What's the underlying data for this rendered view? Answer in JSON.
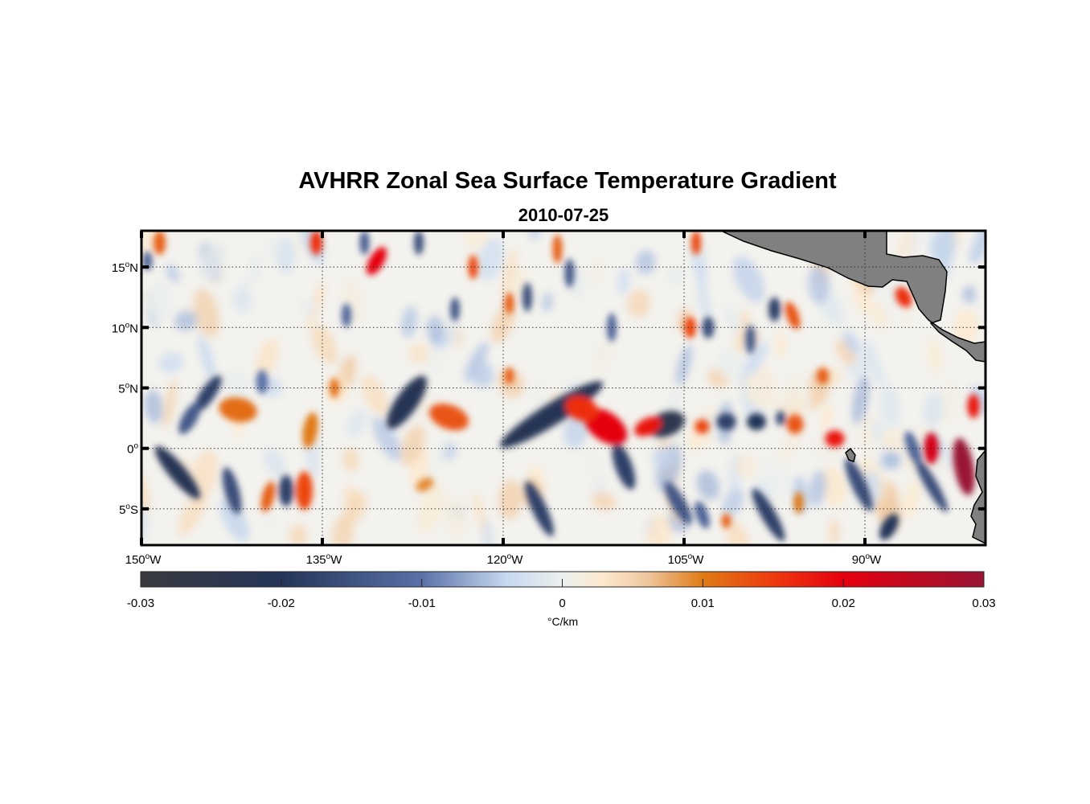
{
  "title": "AVHRR Zonal Sea Surface Temperature Gradient",
  "subtitle": "2010-07-25",
  "map": {
    "lon_range": [
      -150,
      -80
    ],
    "lat_range": [
      -8,
      18
    ],
    "grid": "dotted",
    "land_color": "#808080",
    "lon_ticks": [
      {
        "value": -150,
        "deg": "150",
        "hemi": "W"
      },
      {
        "value": -135,
        "deg": "135",
        "hemi": "W"
      },
      {
        "value": -120,
        "deg": "120",
        "hemi": "W"
      },
      {
        "value": -105,
        "deg": "105",
        "hemi": "W"
      },
      {
        "value": -90,
        "deg": "90",
        "hemi": "W"
      }
    ],
    "lat_ticks": [
      {
        "value": 15,
        "deg": "15",
        "hemi": "N"
      },
      {
        "value": 10,
        "deg": "10",
        "hemi": "N"
      },
      {
        "value": 5,
        "deg": "5",
        "hemi": "N"
      },
      {
        "value": 0,
        "deg": "0",
        "hemi": ""
      },
      {
        "value": -5,
        "deg": "5",
        "hemi": "S"
      }
    ],
    "features": [
      {
        "name": "equatorial-front-west",
        "lon": -116.0,
        "lat": 2.8,
        "value": -0.022,
        "rx": 5.0,
        "ry": 0.9,
        "angle": -32
      },
      {
        "name": "equatorial-warm-lobe-1",
        "lon": -111.5,
        "lat": 1.8,
        "value": 0.02,
        "rx": 2.0,
        "ry": 1.2,
        "angle": 35
      },
      {
        "name": "equatorial-warm-lobe-2",
        "lon": -113.5,
        "lat": 3.3,
        "value": 0.016,
        "rx": 1.4,
        "ry": 1.0,
        "angle": 20
      },
      {
        "name": "equatorial-cold-eddy",
        "lon": -106.5,
        "lat": 2.0,
        "value": -0.024,
        "rx": 1.6,
        "ry": 1.0,
        "angle": -20
      },
      {
        "name": "equatorial-warm-eddy",
        "lon": -108.0,
        "lat": 1.8,
        "value": 0.018,
        "rx": 1.2,
        "ry": 0.7,
        "angle": -25
      },
      {
        "name": "cold-front-129w",
        "lon": -128.0,
        "lat": 3.8,
        "value": -0.022,
        "rx": 0.9,
        "ry": 2.6,
        "angle": 35
      },
      {
        "name": "warm-patch-125w",
        "lon": -124.5,
        "lat": 2.6,
        "value": 0.013,
        "rx": 1.7,
        "ry": 1.0,
        "angle": 20
      },
      {
        "name": "warm-patch-141w",
        "lon": -142.0,
        "lat": 3.2,
        "value": 0.011,
        "rx": 1.6,
        "ry": 1.0,
        "angle": 10
      },
      {
        "name": "cold-streak-144w",
        "lon": -144.5,
        "lat": 4.5,
        "value": -0.018,
        "rx": 0.6,
        "ry": 1.8,
        "angle": 35
      },
      {
        "name": "cold-streak-146w",
        "lon": -146.0,
        "lat": 2.5,
        "value": -0.014,
        "rx": 0.6,
        "ry": 1.5,
        "angle": 30
      },
      {
        "name": "cold-band-148w-south",
        "lon": -147.0,
        "lat": -2.0,
        "value": -0.022,
        "rx": 0.7,
        "ry": 2.8,
        "angle": -40
      },
      {
        "name": "cold-streak-142w-south",
        "lon": -142.5,
        "lat": -3.5,
        "value": -0.016,
        "rx": 0.6,
        "ry": 2.0,
        "angle": -15
      },
      {
        "name": "warm-patch-136w-south",
        "lon": -136.5,
        "lat": -3.5,
        "value": 0.014,
        "rx": 0.7,
        "ry": 1.6,
        "angle": 0
      },
      {
        "name": "cold-patch-138w-south",
        "lon": -138.0,
        "lat": -3.5,
        "value": -0.018,
        "rx": 0.6,
        "ry": 1.3,
        "angle": 0
      },
      {
        "name": "warm-patch-139w-south",
        "lon": -139.5,
        "lat": -4.0,
        "value": 0.012,
        "rx": 0.5,
        "ry": 1.3,
        "angle": 15
      },
      {
        "name": "cold-streak-117w-south",
        "lon": -117.0,
        "lat": -5.0,
        "value": -0.018,
        "rx": 0.6,
        "ry": 2.5,
        "angle": -25
      },
      {
        "name": "cold-streak-110w-south",
        "lon": -110.0,
        "lat": -1.5,
        "value": -0.018,
        "rx": 0.7,
        "ry": 2.0,
        "angle": -20
      },
      {
        "name": "cold-streak-106w-south",
        "lon": -105.5,
        "lat": -4.5,
        "value": -0.014,
        "rx": 0.6,
        "ry": 2.0,
        "angle": -30
      },
      {
        "name": "cold-streak-98w-south",
        "lon": -98.0,
        "lat": -5.5,
        "value": -0.018,
        "rx": 0.6,
        "ry": 2.5,
        "angle": -30
      },
      {
        "name": "cold-streak-90w-south",
        "lon": -90.5,
        "lat": -3.0,
        "value": -0.016,
        "rx": 0.6,
        "ry": 2.4,
        "angle": -25
      },
      {
        "name": "cold-patch-88w-south",
        "lon": -88.0,
        "lat": -6.5,
        "value": -0.02,
        "rx": 0.6,
        "ry": 1.2,
        "angle": 30
      },
      {
        "name": "cold-streak-84w-south",
        "lon": -84.5,
        "lat": -3.0,
        "value": -0.016,
        "rx": 0.5,
        "ry": 2.6,
        "angle": -30
      },
      {
        "name": "warm-coastal-peru",
        "lon": -81.8,
        "lat": -1.5,
        "value": 0.03,
        "rx": 0.8,
        "ry": 2.4,
        "angle": -10
      },
      {
        "name": "warm-patch-84w",
        "lon": -84.5,
        "lat": 0.0,
        "value": 0.022,
        "rx": 0.6,
        "ry": 1.3,
        "angle": 0
      },
      {
        "name": "warm-patch-81w",
        "lon": -81.0,
        "lat": 3.5,
        "value": 0.018,
        "rx": 0.5,
        "ry": 1.0,
        "angle": 0
      },
      {
        "name": "warm-patch-92w",
        "lon": -92.5,
        "lat": 0.8,
        "value": 0.018,
        "rx": 0.8,
        "ry": 0.7,
        "angle": 0
      },
      {
        "name": "warm-patch-96w",
        "lon": -95.8,
        "lat": 2.0,
        "value": 0.013,
        "rx": 0.7,
        "ry": 0.8,
        "angle": 0
      },
      {
        "name": "cold-patch-99w",
        "lon": -99.0,
        "lat": 2.2,
        "value": -0.02,
        "rx": 0.8,
        "ry": 0.7,
        "angle": 0
      },
      {
        "name": "cold-patch-101w",
        "lon": -101.5,
        "lat": 2.2,
        "value": -0.018,
        "rx": 0.8,
        "ry": 0.7,
        "angle": 0
      },
      {
        "name": "warm-patch-103w",
        "lon": -103.5,
        "lat": 1.8,
        "value": 0.014,
        "rx": 0.6,
        "ry": 0.6,
        "angle": 0
      },
      {
        "name": "cold-patch-97w",
        "lon": -97.0,
        "lat": 2.5,
        "value": -0.016,
        "rx": 0.4,
        "ry": 0.6,
        "angle": 0
      },
      {
        "name": "warm-patch-105w-north",
        "lon": -104.5,
        "lat": 10.0,
        "value": 0.014,
        "rx": 0.5,
        "ry": 0.9,
        "angle": 0
      },
      {
        "name": "cold-patch-103w-north",
        "lon": -103.0,
        "lat": 10.0,
        "value": -0.016,
        "rx": 0.5,
        "ry": 0.9,
        "angle": 0
      },
      {
        "name": "warm-patch-96w-north",
        "lon": -96.0,
        "lat": 11.0,
        "value": 0.013,
        "rx": 0.5,
        "ry": 1.2,
        "angle": -20
      },
      {
        "name": "cold-patch-97w-north",
        "lon": -97.5,
        "lat": 11.5,
        "value": -0.018,
        "rx": 0.5,
        "ry": 1.0,
        "angle": 0
      },
      {
        "name": "cold-patch-99w-north",
        "lon": -99.5,
        "lat": 9.0,
        "value": -0.014,
        "rx": 0.4,
        "ry": 1.2,
        "angle": 0
      },
      {
        "name": "warm-patch-94w-north",
        "lon": -93.5,
        "lat": 6.0,
        "value": 0.012,
        "rx": 0.5,
        "ry": 0.7,
        "angle": 0
      },
      {
        "name": "warm-patch-87w-gulf",
        "lon": -86.8,
        "lat": 12.5,
        "value": 0.016,
        "rx": 0.6,
        "ry": 0.9,
        "angle": -30
      },
      {
        "name": "warm-patch-104w-north",
        "lon": -104.0,
        "lat": 17.0,
        "value": 0.014,
        "rx": 0.4,
        "ry": 1.0,
        "angle": 0
      },
      {
        "name": "warm-patch-131w-north",
        "lon": -130.5,
        "lat": 15.5,
        "value": 0.02,
        "rx": 0.6,
        "ry": 1.3,
        "angle": 30
      },
      {
        "name": "warm-patch-135w-north",
        "lon": -135.5,
        "lat": 17.0,
        "value": 0.016,
        "rx": 0.5,
        "ry": 1.0,
        "angle": 0
      },
      {
        "name": "cold-patch-132w-north",
        "lon": -131.5,
        "lat": 17.0,
        "value": -0.013,
        "rx": 0.4,
        "ry": 1.0,
        "angle": 0
      },
      {
        "name": "cold-patch-127w-north",
        "lon": -127.0,
        "lat": 17.0,
        "value": -0.016,
        "rx": 0.4,
        "ry": 1.0,
        "angle": 0
      },
      {
        "name": "warm-patch-123w-north",
        "lon": -122.5,
        "lat": 15.0,
        "value": 0.014,
        "rx": 0.4,
        "ry": 1.0,
        "angle": 0
      },
      {
        "name": "cold-patch-124w-north",
        "lon": -124.0,
        "lat": 11.5,
        "value": -0.014,
        "rx": 0.4,
        "ry": 1.0,
        "angle": 0
      },
      {
        "name": "cold-patch-118w-north",
        "lon": -118.0,
        "lat": 12.5,
        "value": -0.016,
        "rx": 0.4,
        "ry": 1.2,
        "angle": 0
      },
      {
        "name": "warm-patch-119w-north",
        "lon": -119.5,
        "lat": 12.0,
        "value": 0.012,
        "rx": 0.4,
        "ry": 0.9,
        "angle": 0
      },
      {
        "name": "warm-patch-116w-north",
        "lon": -115.5,
        "lat": 16.5,
        "value": 0.012,
        "rx": 0.4,
        "ry": 1.2,
        "angle": 0
      },
      {
        "name": "cold-patch-115w-north",
        "lon": -114.5,
        "lat": 14.5,
        "value": -0.014,
        "rx": 0.4,
        "ry": 1.2,
        "angle": 0
      },
      {
        "name": "cold-patch-111w-north",
        "lon": -111.0,
        "lat": 10.0,
        "value": -0.012,
        "rx": 0.4,
        "ry": 1.2,
        "angle": 0
      },
      {
        "name": "warm-patch-148w-north",
        "lon": -148.5,
        "lat": 17.0,
        "value": 0.012,
        "rx": 0.5,
        "ry": 1.0,
        "angle": 0
      },
      {
        "name": "cold-patch-149w-north",
        "lon": -149.5,
        "lat": 15.5,
        "value": -0.012,
        "rx": 0.4,
        "ry": 0.8,
        "angle": 0
      },
      {
        "name": "cold-patch-133w-north",
        "lon": -133.0,
        "lat": 11.0,
        "value": -0.012,
        "rx": 0.4,
        "ry": 1.0,
        "angle": 0
      },
      {
        "name": "warm-patch-137w-south",
        "lon": -136.0,
        "lat": 1.5,
        "value": 0.01,
        "rx": 0.6,
        "ry": 1.5,
        "angle": 10
      },
      {
        "name": "warm-patch-134w",
        "lon": -134.0,
        "lat": 5.0,
        "value": 0.011,
        "rx": 0.4,
        "ry": 0.8,
        "angle": 0
      },
      {
        "name": "cold-patch-140w-mid",
        "lon": -140.0,
        "lat": 5.5,
        "value": -0.01,
        "rx": 0.5,
        "ry": 1.0,
        "angle": 0
      },
      {
        "name": "cold-patch-104w-south",
        "lon": -103.5,
        "lat": -5.5,
        "value": -0.012,
        "rx": 0.5,
        "ry": 1.2,
        "angle": -20
      },
      {
        "name": "warm-patch-102w-south",
        "lon": -101.5,
        "lat": -6.0,
        "value": 0.012,
        "rx": 0.4,
        "ry": 0.6,
        "angle": 0
      },
      {
        "name": "warm-patch-96w-south",
        "lon": -95.5,
        "lat": -4.5,
        "value": 0.01,
        "rx": 0.4,
        "ry": 0.9,
        "angle": 0
      },
      {
        "name": "warm-patch-127w-south",
        "lon": -126.5,
        "lat": -3.0,
        "value": 0.009,
        "rx": 0.8,
        "ry": 0.5,
        "angle": -30
      },
      {
        "name": "cold-patch-86w",
        "lon": -86.0,
        "lat": 0.0,
        "value": -0.012,
        "rx": 0.5,
        "ry": 1.5,
        "angle": -20
      },
      {
        "name": "warm-patch-119w",
        "lon": -119.5,
        "lat": 6.0,
        "value": 0.012,
        "rx": 0.4,
        "ry": 0.7,
        "angle": 0
      }
    ]
  },
  "colorbar": {
    "range": [
      -0.03,
      0.03
    ],
    "label": "°C/km",
    "tick_values": [
      -0.03,
      -0.02,
      -0.01,
      0,
      0.01,
      0.02,
      0.03
    ],
    "tick_labels": [
      "-0.03",
      "-0.02",
      "-0.01",
      "0",
      "0.01",
      "0.02",
      "0.03"
    ],
    "colors": [
      {
        "v": -0.03,
        "c": "#3a3a3f"
      },
      {
        "v": -0.02,
        "c": "#243559"
      },
      {
        "v": -0.01,
        "c": "#5a71a8"
      },
      {
        "v": -0.004,
        "c": "#c6d8f0"
      },
      {
        "v": 0,
        "c": "#ecf0ee"
      },
      {
        "v": 0.003,
        "c": "#fde8cc"
      },
      {
        "v": 0.006,
        "c": "#efc79f"
      },
      {
        "v": 0.01,
        "c": "#e07a16"
      },
      {
        "v": 0.015,
        "c": "#ef3a0f"
      },
      {
        "v": 0.02,
        "c": "#e5000f"
      },
      {
        "v": 0.03,
        "c": "#991434"
      }
    ]
  }
}
